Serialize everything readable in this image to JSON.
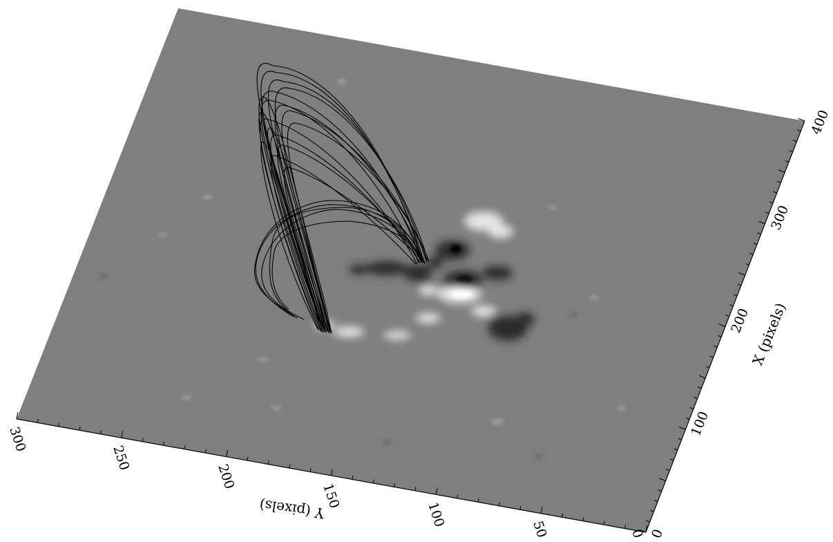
{
  "figure": {
    "x_axis": {
      "label": "X (pixels)",
      "range": [
        0,
        400
      ],
      "ticks": [
        "0",
        "100",
        "200",
        "300",
        "400"
      ]
    },
    "y_axis": {
      "label": "Y (pixels)",
      "range": [
        0,
        300
      ],
      "ticks": [
        "0",
        "50",
        "100",
        "150",
        "200",
        "250",
        "300"
      ]
    },
    "background": "grayscale magnetogram",
    "line_color": "#000000",
    "plane_color": "#7f7f7f"
  }
}
